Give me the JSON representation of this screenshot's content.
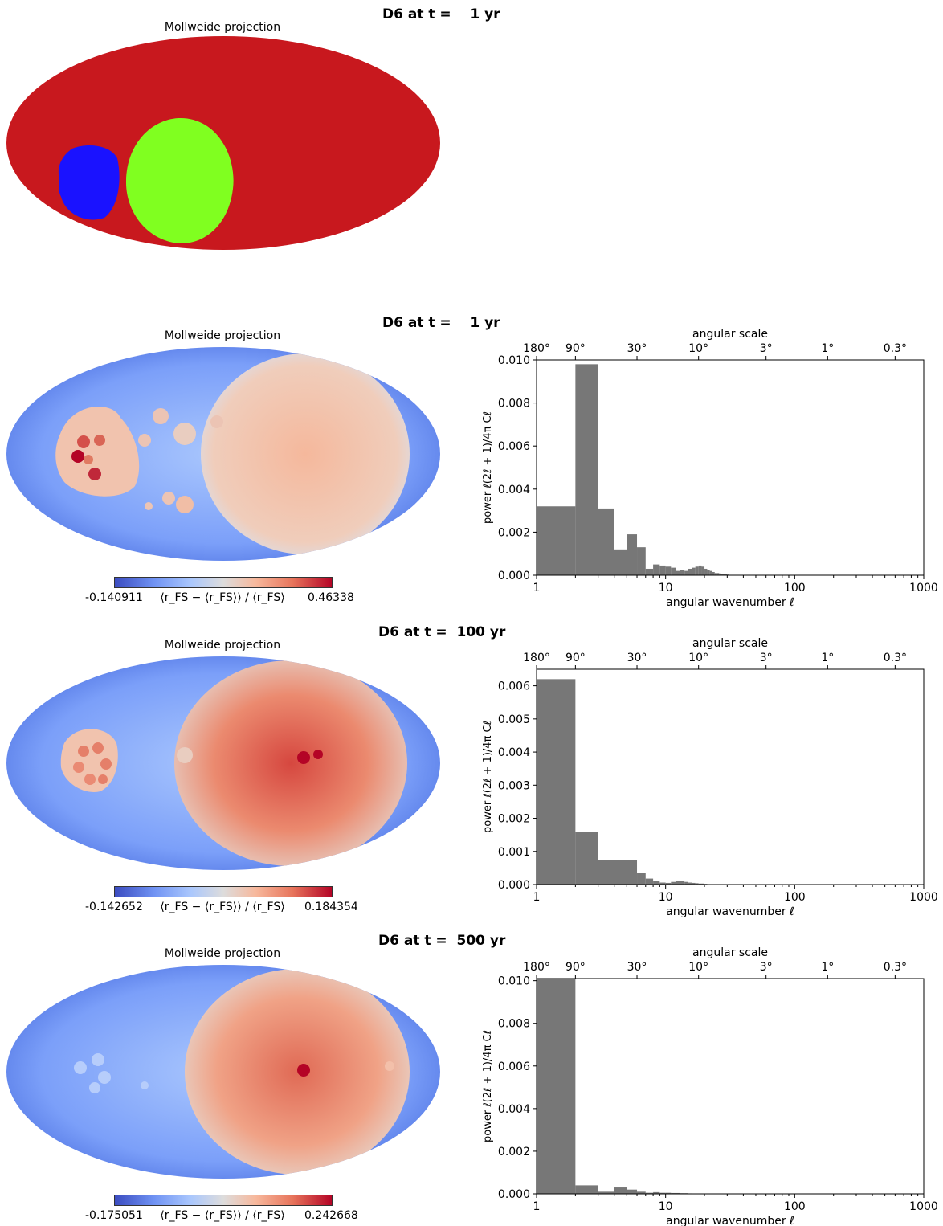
{
  "panels": [
    {
      "title": "D6 at t =    1 yr",
      "map_title": "Mollweide projection",
      "map_style": "regions",
      "colors": {
        "background": "#c8181e",
        "region_green": "#80ff20",
        "region_blue": "#1a12ff"
      }
    },
    {
      "title": "D6 at t =    1 yr",
      "map_title": "Mollweide projection",
      "map_style": "field",
      "colorbar": {
        "min": "-0.140911",
        "max": "0.46338",
        "label": "⟨r_FS − ⟨r_FS⟩⟩ / ⟨r_FS⟩"
      }
    },
    {
      "title": "D6 at t =  100 yr",
      "map_title": "Mollweide projection",
      "map_style": "field",
      "colorbar": {
        "min": "-0.142652",
        "max": "0.184354",
        "label": "⟨r_FS − ⟨r_FS⟩⟩ / ⟨r_FS⟩"
      }
    },
    {
      "title": "D6 at t =  500 yr",
      "map_title": "Mollweide projection",
      "map_style": "field",
      "colorbar": {
        "min": "-0.175051",
        "max": "0.242668",
        "label": "⟨r_FS − ⟨r_FS⟩⟩ / ⟨r_FS⟩"
      }
    }
  ],
  "chart_data": [
    {
      "type": "bar",
      "x_scale": "log",
      "xlim": [
        1,
        1000
      ],
      "ylim": [
        0,
        0.01
      ],
      "xlabel": "angular wavenumber ℓ",
      "ylabel": "power ℓ(2ℓ + 1)/4π Cℓ",
      "top_axis_label": "angular scale",
      "top_ticks": [
        "180°",
        "90°",
        "30°",
        "10°",
        "3°",
        "1°",
        "0.3°"
      ],
      "x_ticks": [
        "1",
        "10",
        "100",
        "1000"
      ],
      "y_ticks": [
        "0.000",
        "0.002",
        "0.004",
        "0.006",
        "0.008",
        "0.010"
      ],
      "bar_color": "#777777",
      "ell": [
        1,
        2,
        3,
        4,
        5,
        6,
        7,
        8,
        9,
        10,
        11,
        12,
        13,
        14,
        15,
        16,
        17,
        18,
        19,
        20,
        21,
        22,
        23,
        24,
        25,
        26,
        27,
        28,
        29,
        30
      ],
      "values": [
        0.0032,
        0.0098,
        0.0031,
        0.0012,
        0.0019,
        0.0013,
        0.0003,
        0.0005,
        0.00045,
        0.0004,
        0.00035,
        0.0002,
        0.00025,
        0.0002,
        0.0003,
        0.00035,
        0.0004,
        0.00045,
        0.0004,
        0.0003,
        0.00025,
        0.0002,
        0.00015,
        0.0001,
        0.0001,
        8e-05,
        6e-05,
        5e-05,
        4e-05,
        3e-05
      ]
    },
    {
      "type": "bar",
      "x_scale": "log",
      "xlim": [
        1,
        1000
      ],
      "ylim": [
        0,
        0.0065
      ],
      "xlabel": "angular wavenumber ℓ",
      "ylabel": "power ℓ(2ℓ + 1)/4π Cℓ",
      "top_axis_label": "angular scale",
      "top_ticks": [
        "180°",
        "90°",
        "30°",
        "10°",
        "3°",
        "1°",
        "0.3°"
      ],
      "x_ticks": [
        "1",
        "10",
        "100",
        "1000"
      ],
      "y_ticks": [
        "0.000",
        "0.001",
        "0.002",
        "0.003",
        "0.004",
        "0.005",
        "0.006"
      ],
      "bar_color": "#777777",
      "ell": [
        1,
        2,
        3,
        4,
        5,
        6,
        7,
        8,
        9,
        10,
        11,
        12,
        13,
        14,
        15,
        16,
        17,
        18,
        19,
        20
      ],
      "values": [
        0.0062,
        0.0016,
        0.00075,
        0.00073,
        0.00075,
        0.00035,
        0.00018,
        0.00012,
        6e-05,
        5e-05,
        8e-05,
        0.0001,
        0.0001,
        8e-05,
        6e-05,
        5e-05,
        4e-05,
        3e-05,
        3e-05,
        2e-05
      ]
    },
    {
      "type": "bar",
      "x_scale": "log",
      "xlim": [
        1,
        1000
      ],
      "ylim": [
        0,
        0.0101
      ],
      "xlabel": "angular wavenumber ℓ",
      "ylabel": "power ℓ(2ℓ + 1)/4π Cℓ",
      "top_axis_label": "angular scale",
      "top_ticks": [
        "180°",
        "90°",
        "30°",
        "10°",
        "3°",
        "1°",
        "0.3°"
      ],
      "x_ticks": [
        "1",
        "10",
        "100",
        "1000"
      ],
      "y_ticks": [
        "0.000",
        "0.002",
        "0.004",
        "0.006",
        "0.008",
        "0.010"
      ],
      "bar_color": "#777777",
      "ell": [
        1,
        2,
        3,
        4,
        5,
        6,
        7,
        8,
        9,
        10,
        11,
        12,
        13,
        14,
        15
      ],
      "values": [
        0.0101,
        0.0004,
        0.0001,
        0.0003,
        0.0002,
        0.0001,
        5e-05,
        8e-05,
        5e-05,
        5e-05,
        4e-05,
        4e-05,
        3e-05,
        3e-05,
        2e-05
      ]
    }
  ]
}
